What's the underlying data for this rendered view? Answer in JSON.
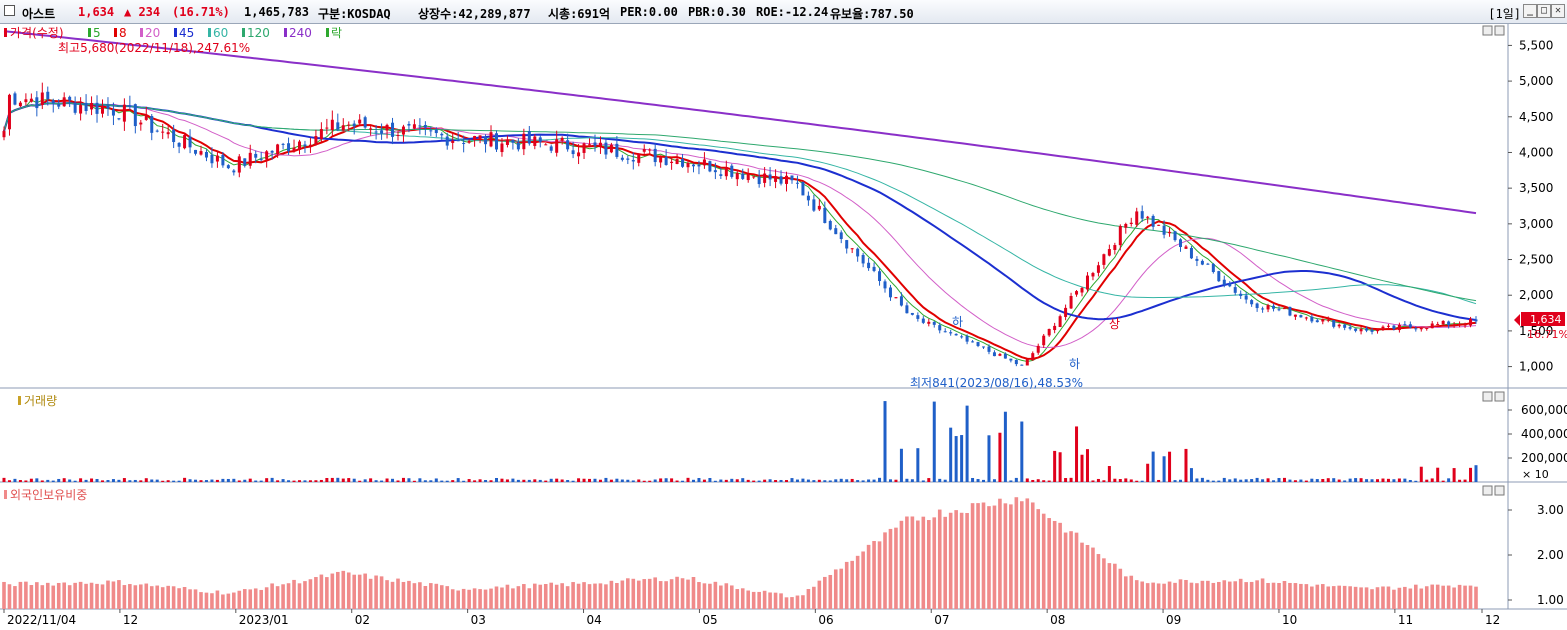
{
  "header": {
    "name": "아스트",
    "price": "1,634",
    "change": "▲ 234",
    "change_pct": "(16.71%)",
    "volume": "1,465,783",
    "market": "구분:KOSDAQ",
    "listed": "상장수:42,289,877",
    "mcap": "시총:691억",
    "per": "PER:0.00",
    "pbr": "PBR:0.30",
    "roe": "ROE:-12.24",
    "reserve": "유보율:787.50",
    "period": "[1일]",
    "btn_min": "_",
    "btn_max": "□",
    "btn_close": "✕"
  },
  "colors": {
    "up": "#e0001b",
    "down": "#1f5fc8",
    "ma5": "#2ea82e",
    "ma8": "#e00000",
    "ma20": "#d25fc8",
    "ma45": "#1c2fd0",
    "ma60": "#35b5a5",
    "ma120": "#2ea86e",
    "ma240": "#8a2fc8",
    "foreign": "#f08a8a"
  },
  "legend": {
    "price_label": "가격(수정)",
    "ma": [
      {
        "label": "5",
        "color": "#2ea82e"
      },
      {
        "label": "8",
        "color": "#e00000"
      },
      {
        "label": "20",
        "color": "#d25fc8"
      },
      {
        "label": "45",
        "color": "#1c2fd0"
      },
      {
        "label": "60",
        "color": "#35b5a5"
      },
      {
        "label": "120",
        "color": "#2ea86e"
      },
      {
        "label": "240",
        "color": "#8a2fc8"
      }
    ],
    "down_label": "락",
    "volume_label": "거래량",
    "foreign_label": "외국인보유비중"
  },
  "annotations": {
    "high": "최고5,680(2022/11/18),247.61%",
    "low": "최저841(2023/08/16),48.53%",
    "ha1": "하",
    "ha2": "하",
    "sang": "상",
    "price_tag": "1,634",
    "price_tag_pct": "16.71%",
    "vol_unit": "× 10"
  },
  "chart_data": [
    {
      "type": "candlestick",
      "title": "가격(수정)",
      "x_ticks": [
        "2022/11/04",
        "12",
        "2023/01",
        "02",
        "03",
        "04",
        "05",
        "06",
        "07",
        "08",
        "09",
        "10",
        "11",
        "12"
      ],
      "y_ticks": [
        "5,500",
        "5,000",
        "4,500",
        "4,000",
        "3,500",
        "3,000",
        "2,500",
        "2,000",
        "1,500",
        "1,000"
      ],
      "ylim": [
        700,
        5800
      ],
      "monthly_close": [
        {
          "month": "2022-11",
          "close": 4800
        },
        {
          "month": "2022-12",
          "close": 4600
        },
        {
          "month": "2023-01",
          "close": 3800
        },
        {
          "month": "2023-02",
          "close": 4400
        },
        {
          "month": "2023-03",
          "close": 4200
        },
        {
          "month": "2023-04",
          "close": 4100
        },
        {
          "month": "2023-05",
          "close": 3900
        },
        {
          "month": "2023-06",
          "close": 3550
        },
        {
          "month": "2023-07",
          "close": 1700
        },
        {
          "month": "2023-08",
          "close": 1000
        },
        {
          "month": "2023-09",
          "close": 3200
        },
        {
          "month": "2023-10",
          "close": 1900
        },
        {
          "month": "2023-11",
          "close": 1500
        },
        {
          "month": "2023-12",
          "close": 1634
        }
      ],
      "high": {
        "value": 5680,
        "date": "2022/11/18"
      },
      "low": {
        "value": 841,
        "date": "2023/08/16"
      },
      "last": 1634,
      "series": [
        {
          "name": "5"
        },
        {
          "name": "8"
        },
        {
          "name": "20"
        },
        {
          "name": "45"
        },
        {
          "name": "60"
        },
        {
          "name": "120"
        },
        {
          "name": "240"
        }
      ],
      "ma240_range": [
        5700,
        3150
      ]
    },
    {
      "type": "bar",
      "title": "거래량",
      "y_ticks": [
        "600,000",
        "400,000",
        "200,000"
      ],
      "ylim": [
        0,
        700000
      ],
      "unit": "× 10",
      "peaks": [
        {
          "month": "2023-07",
          "value": 680000
        },
        {
          "month": "2023-08",
          "value": 640000
        },
        {
          "month": "2023-09",
          "value": 340000
        },
        {
          "month": "2023-12",
          "value": 140000
        }
      ]
    },
    {
      "type": "bar",
      "title": "외국인보유비중",
      "y_ticks": [
        "3.00",
        "2.00",
        "1.00"
      ],
      "ylim": [
        0.8,
        3.4
      ],
      "monthly_values": [
        {
          "month": "2022-11",
          "value": 1.35
        },
        {
          "month": "2022-12",
          "value": 1.4
        },
        {
          "month": "2023-01",
          "value": 1.15
        },
        {
          "month": "2023-02",
          "value": 1.6
        },
        {
          "month": "2023-03",
          "value": 1.25
        },
        {
          "month": "2023-04",
          "value": 1.35
        },
        {
          "month": "2023-05",
          "value": 1.5
        },
        {
          "month": "2023-06",
          "value": 1.05
        },
        {
          "month": "2023-07",
          "value": 2.8
        },
        {
          "month": "2023-08",
          "value": 3.3
        },
        {
          "month": "2023-09",
          "value": 1.4
        },
        {
          "month": "2023-10",
          "value": 1.45
        },
        {
          "month": "2023-11",
          "value": 1.25
        },
        {
          "month": "2023-12",
          "value": 1.35
        }
      ]
    }
  ]
}
